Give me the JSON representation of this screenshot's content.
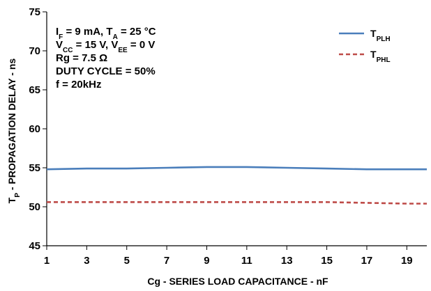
{
  "chart_data": {
    "type": "line",
    "xlabel": "Cg - SERIES LOAD CAPACITANCE  - nF",
    "ylabel": {
      "main": "T",
      "sub": "P",
      "rest": " - PROPAGATION DELAY - ns"
    },
    "xlim": [
      1,
      20
    ],
    "ylim": [
      45,
      75
    ],
    "xticks": [
      "1",
      "3",
      "5",
      "7",
      "9",
      "11",
      "13",
      "15",
      "17",
      "19"
    ],
    "yticks": [
      "45",
      "50",
      "55",
      "60",
      "65",
      "70",
      "75"
    ],
    "grid": false,
    "legend_position": "top-right",
    "x": [
      1,
      3,
      5,
      7,
      9,
      11,
      13,
      15,
      17,
      19,
      20
    ],
    "series": [
      {
        "name": {
          "main": "T",
          "sub": "PLH"
        },
        "color": "#4a7ebb",
        "style": "solid",
        "values": [
          54.8,
          54.9,
          54.9,
          55.0,
          55.1,
          55.1,
          55.0,
          54.9,
          54.8,
          54.8,
          54.8
        ]
      },
      {
        "name": {
          "main": "T",
          "sub": "PHL"
        },
        "color": "#be4b48",
        "style": "dashed",
        "values": [
          50.6,
          50.6,
          50.6,
          50.6,
          50.6,
          50.6,
          50.6,
          50.6,
          50.5,
          50.4,
          50.4
        ]
      }
    ],
    "conditions": [
      {
        "parts": [
          [
            "I",
            ""
          ],
          [
            "F",
            "sub"
          ],
          [
            " = 9 mA, T",
            ""
          ],
          [
            "A",
            "sub"
          ],
          [
            " = 25 °C",
            ""
          ]
        ]
      },
      {
        "parts": [
          [
            "V",
            ""
          ],
          [
            "CC",
            "sub"
          ],
          [
            " = 15 V, V",
            ""
          ],
          [
            "EE",
            "sub"
          ],
          [
            " = 0 V",
            ""
          ]
        ]
      },
      {
        "parts": [
          [
            "Rg = 7.5 Ω",
            ""
          ]
        ]
      },
      {
        "parts": [
          [
            "DUTY CYCLE = 50%",
            ""
          ]
        ]
      },
      {
        "parts": [
          [
            "f = 20kHz",
            ""
          ]
        ]
      }
    ]
  }
}
